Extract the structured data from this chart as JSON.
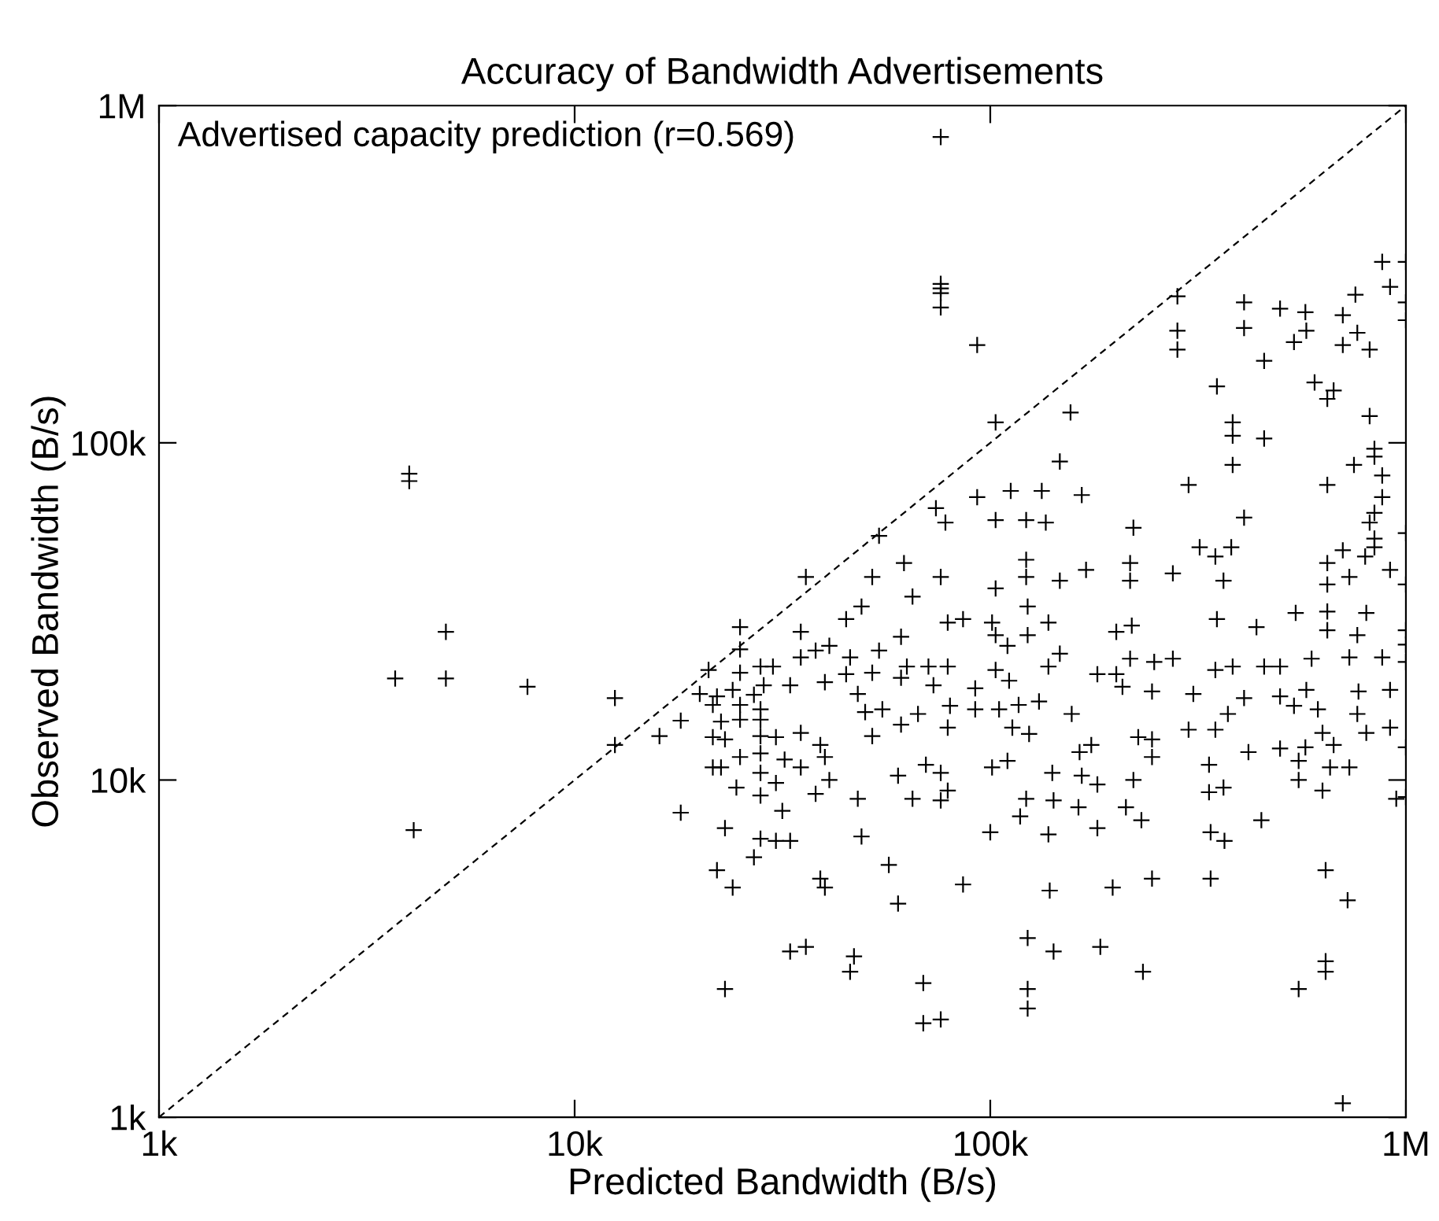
{
  "chart_data": {
    "type": "scatter",
    "title": "Accuracy of Bandwidth Advertisements",
    "xlabel": "Predicted Bandwidth (B/s)",
    "ylabel": "Observed Bandwidth (B/s)",
    "log": "xy",
    "grid": false,
    "xlim": [
      1000,
      1000000
    ],
    "ylim": [
      1000,
      1000000
    ],
    "xticks": [
      {
        "value": 1000,
        "label": "1k"
      },
      {
        "value": 10000,
        "label": "10k"
      },
      {
        "value": 100000,
        "label": "100k"
      },
      {
        "value": 1000000,
        "label": "1M"
      }
    ],
    "yticks": [
      {
        "value": 1000,
        "label": "1k"
      },
      {
        "value": 10000,
        "label": "10k"
      },
      {
        "value": 100000,
        "label": "100k"
      },
      {
        "value": 1000000,
        "label": "1M"
      }
    ],
    "annotations": [
      "Advertised capacity prediction (r=0.569)"
    ],
    "series": [
      {
        "color": "#000000",
        "marker": "cross",
        "x": [
          4000,
          4000,
          3700,
          4900,
          4900,
          4100,
          7700,
          12500,
          12500,
          18000,
          18000,
          16000,
          76000,
          76000,
          76000,
          76000,
          76000,
          93000,
          103000,
          156000,
          282000,
          282000,
          282000,
          408000,
          408000,
          498000,
          573000,
          538000,
          576000,
          705000,
          756000,
          705000,
          764000,
          818000,
          877000,
          916000,
          1000000,
          1000000,
          1000000,
          456000,
          351000,
          383000,
          383000,
          456000,
          383000,
          603000,
          670000,
          647000,
          818000,
          840000,
          840000,
          750000,
          877000,
          877000,
          647000,
          300000,
          408000,
          840000,
          818000,
          840000,
          1000000,
          647000,
          705000,
          798000,
          840000,
          731000,
          916000,
          1000000,
          647000,
          364000,
          275000,
          319000,
          348000,
          380000,
          221000,
          170000,
          217000,
          217000,
          147000,
          147000,
          166000,
          133000,
          112000,
          93000,
          103000,
          122000,
          136000,
          74000,
          78000,
          62000,
          54000,
          122000,
          122000,
          103000,
          76000,
          52000,
          36000,
          65000,
          705000,
          123000,
          123000,
          123000,
          142000,
          184000,
          233000,
          69000,
          69000,
          76000,
          47000,
          46000,
          33000,
          36000,
          552000,
          641000,
          641000,
          724000,
          641000,
          339000,
          245000,
          197000,
          139000,
          86000,
          57000,
          60000,
          39000,
          40000,
          49000,
          33000,
          100000,
          138000,
          181000,
          231000,
          366000,
          339000,
          449000,
          948000,
          1000000,
          1000000,
          118000,
          122000,
          142000,
          163000,
          212000,
          181000,
          221000,
          336000,
          364000,
          630000,
          552000,
          657000,
          731000,
          65000,
          76000,
          79000,
          48000,
          38000,
          41000,
          60000,
          70000,
          76000,
          101000,
          110000,
          141000,
          166000,
          245000,
          164000,
          175000,
          245000,
          227000,
          336000,
          418000,
          498000,
          552000,
          573000,
          670000,
          764000,
          803000,
          916000,
          1000000,
          916000,
          1000000,
          1000000,
          877000,
          769000,
          731000,
          764000,
          803000,
          647000,
          647000,
          593000,
          614000,
          630000,
          498000,
          538000,
          576000,
          408000,
          373000,
          348000,
          383000,
          456000,
          498000,
          351000,
          437000,
          543000,
          308000,
          300000,
          348000,
          275000,
          248000,
          245000,
          217000,
          208000,
          201000,
          181000,
          201000,
          219000,
          157000,
          138000,
          147000,
          138000,
          123000,
          123000,
          110000,
          103000,
          111000,
          105000,
          117000,
          131000,
          113000,
          124000,
          92000,
          92000,
          80000,
          79000,
          79000,
          79000,
          86000,
          101000,
          103000,
          71000,
          73000,
          63000,
          61000,
          54000,
          52000,
          61000,
          61000,
          50000,
          55000,
          67000,
          52000,
          39000,
          40000,
          35000,
          35000,
          40000,
          45000,
          48000,
          38000,
          41000,
          46000,
          35000,
          35000,
          49000,
          45000,
          33000,
          25000,
          25000,
          21000,
          25000,
          28000,
          30000,
          20000,
          22000,
          24000,
          27000,
          28500,
          21500,
          25000,
          28000,
          22500,
          25000,
          28000,
          21500,
          23000,
          28000,
          30500,
          25000,
          28000,
          32000,
          21500,
          22500,
          28000,
          24500,
          30500,
          28000,
          31600,
          23000,
          28000,
          30500,
          27000,
          22000,
          24000,
          23000
        ],
        "values": [
          81000,
          77000,
          20000,
          27500,
          20000,
          7100,
          18900,
          17500,
          12700,
          15000,
          8000,
          13500,
          807000,
          296000,
          287000,
          278000,
          252000,
          195000,
          115000,
          123000,
          272000,
          215000,
          189000,
          261000,
          219000,
          250000,
          244000,
          199000,
          215000,
          239000,
          275000,
          195000,
          212000,
          189000,
          344000,
          290000,
          344000,
          261000,
          231000,
          175000,
          147000,
          115000,
          105000,
          103000,
          86000,
          151000,
          143000,
          135000,
          120000,
          96000,
          91000,
          86000,
          80000,
          69000,
          75000,
          75000,
          60000,
          62000,
          58000,
          52000,
          54000,
          44000,
          48000,
          46000,
          49000,
          40000,
          42000,
          38000,
          38000,
          39000,
          41000,
          49000,
          46000,
          49000,
          56000,
          42000,
          44000,
          39000,
          39000,
          88000,
          70000,
          72000,
          72000,
          69000,
          59000,
          59000,
          58000,
          64000,
          58000,
          44000,
          53000,
          45000,
          40000,
          37000,
          40000,
          40000,
          40000,
          35000,
          1100,
          3400,
          2400,
          2100,
          3100,
          3200,
          2700,
          2500,
          1900,
          1950,
          3000,
          2700,
          3100,
          3200,
          2400,
          2900,
          2700,
          4400,
          5400,
          5100,
          5100,
          4800,
          4700,
          4900,
          5600,
          4300,
          5100,
          4800,
          6800,
          6600,
          7000,
          6900,
          7200,
          7600,
          6600,
          7000,
          7600,
          8800,
          8900,
          12500,
          7800,
          8800,
          8700,
          8300,
          8300,
          9700,
          10000,
          9200,
          9500,
          9300,
          10000,
          10900,
          10900,
          8800,
          8700,
          9300,
          8800,
          9100,
          10000,
          10300,
          11100,
          10500,
          10900,
          11400,
          10500,
          10300,
          11700,
          12100,
          12700,
          13200,
          13400,
          11100,
          12100,
          12400,
          11400,
          12500,
          12700,
          15700,
          13800,
          14300,
          22400,
          18500,
          27800,
          25200,
          23100,
          18300,
          23100,
          26900,
          31300,
          27800,
          31600,
          22900,
          16200,
          13800,
          17700,
          16600,
          18500,
          17500,
          15700,
          21200,
          21700,
          21700,
          21700,
          30000,
          28400,
          31300,
          18000,
          14100,
          14100,
          22900,
          22400,
          18300,
          22900,
          18900,
          20600,
          20600,
          27500,
          28700,
          15700,
          29300,
          23700,
          21700,
          32700,
          26900,
          25000,
          21200,
          19700,
          16200,
          16700,
          17100,
          14300,
          13700,
          18700,
          16200,
          16600,
          14300,
          21700,
          29300,
          30000,
          29300,
          26900,
          21700,
          19100,
          21700,
          26600,
          24200,
          20800,
          20100,
          14600,
          15900,
          16200,
          15700,
          13500,
          12700,
          11700,
          13800,
          10900,
          19500,
          20600,
          18000,
          24200,
          25000,
          23100,
          23100,
          27500,
          32700,
          30000,
          19100,
          28400,
          24400,
          21200,
          20800,
          21700,
          21700,
          18000,
          17700,
          18500,
          17900,
          19100,
          16700,
          16700,
          16200,
          14900,
          15100,
          15100,
          13400,
          13200,
          13500,
          13400,
          11700,
          12000,
          11500,
          10900,
          10900,
          10500,
          9500,
          9800,
          9000,
          8100,
          7200,
          6700,
          6600,
          5900,
          5400,
          4800,
          2400
        ]
      },
      {
        "type": "line",
        "color": "#000000",
        "line_style": "dashed",
        "x": [
          1000,
          1000000
        ],
        "values": [
          1000,
          1000000
        ]
      }
    ]
  }
}
